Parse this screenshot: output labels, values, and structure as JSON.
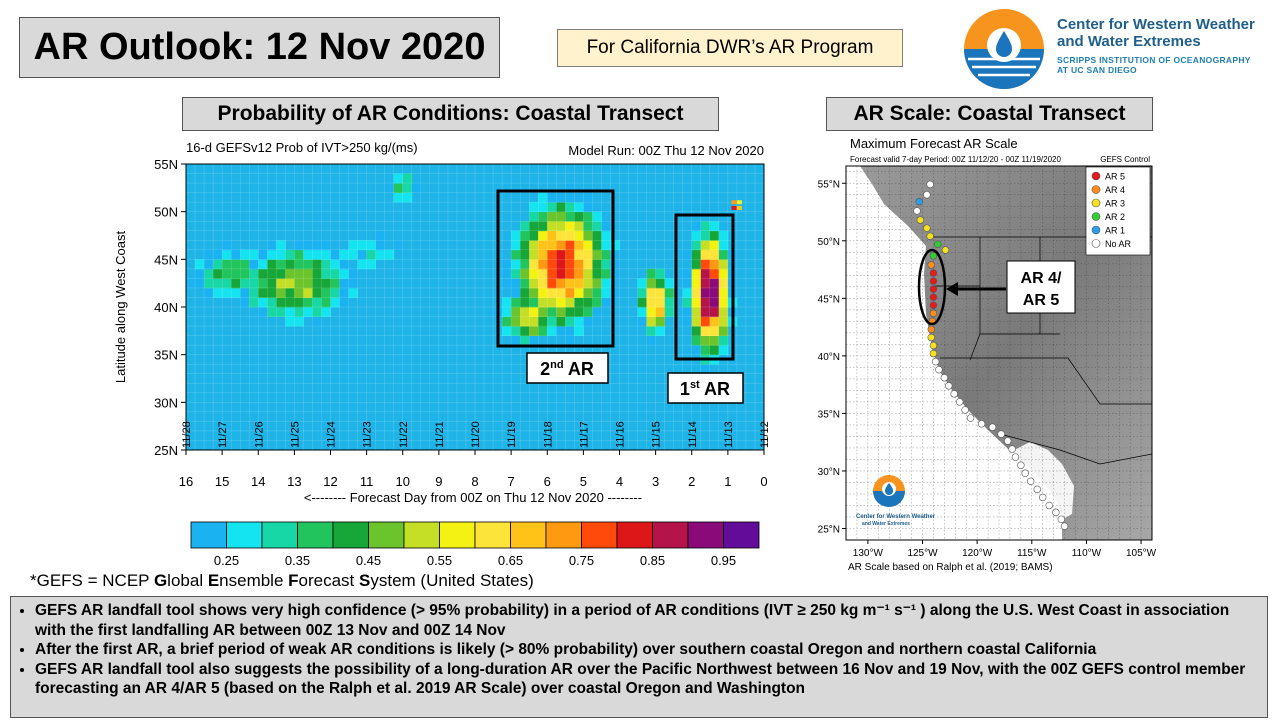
{
  "header": {
    "title": "AR Outlook: 12 Nov 2020",
    "banner": "For California DWR’s AR Program",
    "logo_line1": "Center for Western Weather",
    "logo_line2": "and Water Extremes",
    "logo_line3": "SCRIPPS INSTITUTION OF OCEANOGRAPHY",
    "logo_line4": "AT UC SAN DIEGO"
  },
  "panels": {
    "left_title": "Probability of AR Conditions: Coastal Transect",
    "right_title": "AR Scale: Coastal Transect"
  },
  "chart_data": [
    {
      "type": "heatmap",
      "title": "16-d GEFSv12 Prob of IVT>250 kg/(ms)",
      "subtitle": "Model Run: 00Z Thu 12 Nov 2020",
      "xlabel": "<-------- Forecast Day from 00Z on Thu 12 Nov 2020 --------",
      "ylabel": "Latitude along West Coast",
      "x_ticks": [
        "16",
        "15",
        "14",
        "13",
        "12",
        "11",
        "10",
        "9",
        "8",
        "7",
        "6",
        "5",
        "4",
        "3",
        "2",
        "1",
        "0"
      ],
      "x_dates": [
        "11/28",
        "11/27",
        "11/26",
        "11/25",
        "11/24",
        "11/23",
        "11/22",
        "11/21",
        "11/20",
        "11/19",
        "11/18",
        "11/17",
        "11/16",
        "11/15",
        "11/14",
        "11/13",
        "11/12"
      ],
      "y_ticks": [
        "25N",
        "30N",
        "35N",
        "40N",
        "45N",
        "50N",
        "55N"
      ],
      "xlim": [
        16,
        0
      ],
      "ylim": [
        25,
        55
      ],
      "colorbar_ticks": [
        "0.25",
        "0.35",
        "0.45",
        "0.55",
        "0.65",
        "0.75",
        "0.85",
        "0.95"
      ],
      "colorbar_colors": [
        "#1ab2f0",
        "#14e3f0",
        "#17d7a6",
        "#22c55d",
        "#17a638",
        "#6cc42d",
        "#c5df27",
        "#f4f213",
        "#fde43a",
        "#ffc219",
        "#ff9a10",
        "#ff4a0c",
        "#dd1717",
        "#b4144a",
        "#8a0a7a",
        "#620d9a"
      ],
      "background_color": "#1eb4e8",
      "regions": [
        {
          "name": "2nd AR",
          "day_range": [
            7.3,
            4.2
          ],
          "lat_range": [
            36,
            52
          ],
          "peak": 0.85
        },
        {
          "name": "1st AR",
          "day_range": [
            2.3,
            0.8
          ],
          "lat_range": [
            35,
            49
          ],
          "peak": 0.97
        }
      ],
      "annotations": [
        "2nd AR",
        "1st AR"
      ]
    },
    {
      "type": "scatter",
      "title": "Maximum Forecast AR Scale",
      "subtitle": "Forecast valid 7-day Period: 00Z 11/12/20 - 00Z 11/19/2020",
      "source": "GEFS Control",
      "x_ticks": [
        "130°W",
        "125°W",
        "120°W",
        "115°W",
        "110°W",
        "105°W"
      ],
      "y_ticks": [
        "25°N",
        "30°N",
        "35°N",
        "40°N",
        "45°N",
        "50°N",
        "55°N"
      ],
      "legend": [
        {
          "label": "AR 5",
          "color": "#e41a1c"
        },
        {
          "label": "AR 4",
          "color": "#ff8c1a"
        },
        {
          "label": "AR 3",
          "color": "#f5e11e"
        },
        {
          "label": "AR 2",
          "color": "#33cc33"
        },
        {
          "label": "AR 1",
          "color": "#2b9ee8"
        },
        {
          "label": "No AR",
          "color": "#ffffff"
        }
      ],
      "callout": [
        "AR 4/",
        "AR 5"
      ],
      "footer": "AR Scale based on Ralph et al. (2019; BAMS)",
      "inset_logo_line1": "Center for Western Weather",
      "inset_logo_line2": "and Water Extremes",
      "points": [
        {
          "lon": -124.3,
          "lat": 54.9,
          "cat": 0
        },
        {
          "lon": -124.6,
          "lat": 54.0,
          "cat": 0
        },
        {
          "lon": -125.3,
          "lat": 53.4,
          "cat": 1
        },
        {
          "lon": -125.5,
          "lat": 52.6,
          "cat": 0
        },
        {
          "lon": -125.2,
          "lat": 51.8,
          "cat": 3
        },
        {
          "lon": -124.6,
          "lat": 51.1,
          "cat": 3
        },
        {
          "lon": -124.3,
          "lat": 50.4,
          "cat": 3
        },
        {
          "lon": -123.6,
          "lat": 49.7,
          "cat": 2
        },
        {
          "lon": -122.9,
          "lat": 49.2,
          "cat": 3
        },
        {
          "lon": -124.0,
          "lat": 48.7,
          "cat": 2
        },
        {
          "lon": -124.2,
          "lat": 47.9,
          "cat": 4
        },
        {
          "lon": -124.0,
          "lat": 47.2,
          "cat": 5
        },
        {
          "lon": -124.0,
          "lat": 46.5,
          "cat": 5
        },
        {
          "lon": -124.0,
          "lat": 45.8,
          "cat": 5
        },
        {
          "lon": -124.0,
          "lat": 45.1,
          "cat": 5
        },
        {
          "lon": -124.0,
          "lat": 44.4,
          "cat": 5
        },
        {
          "lon": -124.0,
          "lat": 43.7,
          "cat": 4
        },
        {
          "lon": -124.1,
          "lat": 43.0,
          "cat": 4
        },
        {
          "lon": -124.2,
          "lat": 42.3,
          "cat": 4
        },
        {
          "lon": -124.2,
          "lat": 41.6,
          "cat": 3
        },
        {
          "lon": -124.0,
          "lat": 40.9,
          "cat": 3
        },
        {
          "lon": -124.0,
          "lat": 40.2,
          "cat": 3
        },
        {
          "lon": -123.8,
          "lat": 39.5,
          "cat": 0
        },
        {
          "lon": -123.5,
          "lat": 38.8,
          "cat": 0
        },
        {
          "lon": -123.0,
          "lat": 38.1,
          "cat": 0
        },
        {
          "lon": -122.6,
          "lat": 37.4,
          "cat": 0
        },
        {
          "lon": -122.1,
          "lat": 36.7,
          "cat": 0
        },
        {
          "lon": -121.6,
          "lat": 36.0,
          "cat": 0
        },
        {
          "lon": -121.1,
          "lat": 35.3,
          "cat": 0
        },
        {
          "lon": -120.6,
          "lat": 34.6,
          "cat": 0
        },
        {
          "lon": -119.6,
          "lat": 34.1,
          "cat": 0
        },
        {
          "lon": -118.6,
          "lat": 33.8,
          "cat": 0
        },
        {
          "lon": -117.8,
          "lat": 33.2,
          "cat": 0
        },
        {
          "lon": -117.2,
          "lat": 32.6,
          "cat": 0
        },
        {
          "lon": -116.8,
          "lat": 31.9,
          "cat": 0
        },
        {
          "lon": -116.5,
          "lat": 31.2,
          "cat": 0
        },
        {
          "lon": -116.0,
          "lat": 30.5,
          "cat": 0
        },
        {
          "lon": -115.6,
          "lat": 29.8,
          "cat": 0
        },
        {
          "lon": -115.1,
          "lat": 29.1,
          "cat": 0
        },
        {
          "lon": -114.5,
          "lat": 28.4,
          "cat": 0
        },
        {
          "lon": -114.0,
          "lat": 27.7,
          "cat": 0
        },
        {
          "lon": -113.4,
          "lat": 27.0,
          "cat": 0
        },
        {
          "lon": -112.8,
          "lat": 26.4,
          "cat": 0
        },
        {
          "lon": -112.3,
          "lat": 25.8,
          "cat": 0
        },
        {
          "lon": -112.0,
          "lat": 25.2,
          "cat": 0
        }
      ]
    }
  ],
  "footnote": "*GEFS = NCEP Global Ensemble Forecast System (United States)",
  "footnote_parts": [
    "*GEFS = NCEP ",
    "G",
    "lobal ",
    "E",
    "nsemble ",
    "F",
    "orecast ",
    "S",
    "ystem (United States)"
  ],
  "bullets": [
    "GEFS AR landfall tool shows very high confidence (> 95% probability) in a period of AR conditions (IVT ≥ 250 kg m⁻¹ s⁻¹ ) along the U.S. West Coast in association with the first landfalling AR between 00Z 13 Nov and 00Z 14 Nov",
    "After the first AR, a brief period of weak AR conditions is likely (> 80% probability) over southern coastal Oregon and northern coastal California",
    "GEFS AR landfall tool also suggests the possibility of a long-duration AR over the Pacific Northwest between 16 Nov and 19 Nov, with the 00Z GEFS control member forecasting an AR 4/AR 5 (based on the Ralph et al. 2019 AR Scale) over coastal Oregon and Washington"
  ]
}
